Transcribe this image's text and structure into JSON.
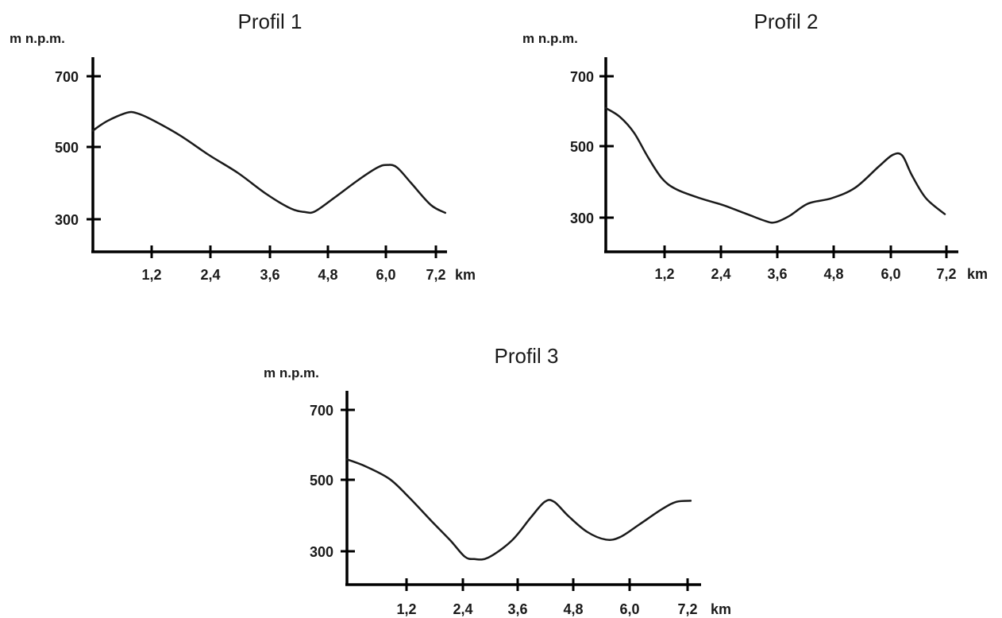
{
  "chart_data": [
    {
      "type": "line",
      "title": "Profil 1",
      "ylabel": "m n.p.m.",
      "xlabel": "km",
      "xlim": [
        0,
        7.2
      ],
      "ylim": [
        200,
        750
      ],
      "x_ticks": [
        "1,2",
        "2,4",
        "3,6",
        "4,8",
        "6,0",
        "7,2"
      ],
      "x_tick_values": [
        1.2,
        2.4,
        3.6,
        4.8,
        6.0,
        7.2
      ],
      "y_ticks": [
        "700",
        "500",
        "300"
      ],
      "y_tick_values": [
        700,
        500,
        300
      ],
      "grid": false,
      "series": [
        {
          "x": [
            0,
            0.3,
            0.7,
            0.9,
            1.2,
            1.8,
            2.4,
            3.0,
            3.6,
            4.1,
            4.4,
            4.6,
            5.0,
            5.5,
            5.9,
            6.1,
            6.3,
            6.6,
            7.0,
            7.3
          ],
          "values": [
            548,
            575,
            598,
            597,
            580,
            535,
            480,
            430,
            370,
            330,
            320,
            322,
            360,
            410,
            445,
            452,
            445,
            400,
            340,
            318
          ]
        }
      ]
    },
    {
      "type": "line",
      "title": "Profil 2",
      "ylabel": "m n.p.m.",
      "xlabel": "km",
      "xlim": [
        0,
        7.2
      ],
      "ylim": [
        200,
        750
      ],
      "x_ticks": [
        "1,2",
        "2,4",
        "3,6",
        "4,8",
        "6,0",
        "7,2"
      ],
      "x_tick_values": [
        1.2,
        2.4,
        3.6,
        4.8,
        6.0,
        7.2
      ],
      "y_ticks": [
        "700",
        "500",
        "300"
      ],
      "y_tick_values": [
        700,
        500,
        300
      ],
      "grid": false,
      "series": [
        {
          "x": [
            0,
            0.3,
            0.6,
            0.9,
            1.2,
            1.5,
            2.0,
            2.5,
            3.0,
            3.4,
            3.6,
            3.9,
            4.3,
            4.8,
            5.3,
            5.8,
            6.1,
            6.3,
            6.5,
            6.8,
            7.2
          ],
          "values": [
            610,
            585,
            540,
            470,
            410,
            380,
            355,
            335,
            310,
            290,
            287,
            305,
            340,
            355,
            385,
            445,
            478,
            475,
            420,
            355,
            310
          ]
        }
      ]
    },
    {
      "type": "line",
      "title": "Profil 3",
      "ylabel": "m n.p.m.",
      "xlabel": "km",
      "xlim": [
        0,
        7.2
      ],
      "ylim": [
        200,
        750
      ],
      "x_ticks": [
        "1,2",
        "2,4",
        "3,6",
        "4,8",
        "6,0",
        "7,2"
      ],
      "x_tick_values": [
        1.2,
        2.4,
        3.6,
        4.8,
        6.0,
        7.2
      ],
      "y_ticks": [
        "700",
        "500",
        "300"
      ],
      "y_tick_values": [
        700,
        500,
        300
      ],
      "grid": false,
      "series": [
        {
          "x": [
            0,
            0.4,
            0.9,
            1.3,
            1.8,
            2.2,
            2.5,
            2.7,
            3.0,
            3.5,
            3.9,
            4.2,
            4.4,
            4.7,
            5.1,
            5.5,
            5.8,
            6.2,
            6.7,
            7.0,
            7.3
          ],
          "values": [
            560,
            540,
            505,
            455,
            385,
            330,
            285,
            278,
            282,
            330,
            395,
            440,
            440,
            400,
            355,
            333,
            340,
            375,
            420,
            440,
            443
          ]
        }
      ]
    }
  ]
}
